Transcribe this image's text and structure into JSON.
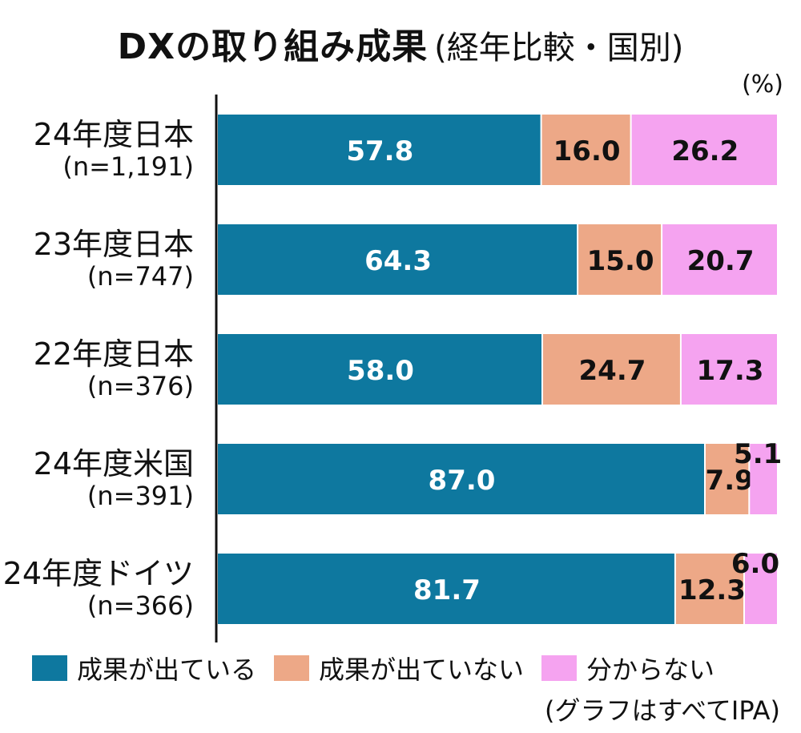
{
  "title": "DXの取り組み成果",
  "subtitle": "(経年比較・国別)",
  "unit": "(%)",
  "source_note": "(グラフはすべてIPA)",
  "colors": {
    "achieved": "#0e789f",
    "not_achieved": "#eda887",
    "unknown": "#f5a3f0"
  },
  "legend": [
    {
      "label": "成果が出ている",
      "color": "#0e789f"
    },
    {
      "label": "成果が出ていない",
      "color": "#eda887"
    },
    {
      "label": "分からない",
      "color": "#f5a3f0"
    }
  ],
  "chart_data": {
    "type": "bar",
    "orientation": "horizontal",
    "stacked": true,
    "xlim": [
      0,
      100
    ],
    "categories": [
      {
        "label": "24年度日本",
        "n": "(n=1,191)"
      },
      {
        "label": "23年度日本",
        "n": "(n=747)"
      },
      {
        "label": "22年度日本",
        "n": "(n=376)"
      },
      {
        "label": "24年度米国",
        "n": "(n=391)"
      },
      {
        "label": "24年度ドイツ",
        "n": "(n=366)"
      }
    ],
    "series": [
      {
        "name": "成果が出ている",
        "values": [
          57.8,
          64.3,
          58.0,
          87.0,
          81.7
        ],
        "labels": [
          "57.8",
          "64.3",
          "58.0",
          "87.0",
          "81.7"
        ]
      },
      {
        "name": "成果が出ていない",
        "values": [
          16.0,
          15.0,
          24.7,
          7.9,
          12.3
        ],
        "labels": [
          "16.0",
          "15.0",
          "24.7",
          "7.9",
          "12.3"
        ]
      },
      {
        "name": "分からない",
        "values": [
          26.2,
          20.7,
          17.3,
          5.1,
          6.0
        ],
        "labels": [
          "26.2",
          "20.7",
          "17.3",
          "5.1",
          "6.0"
        ]
      }
    ]
  }
}
